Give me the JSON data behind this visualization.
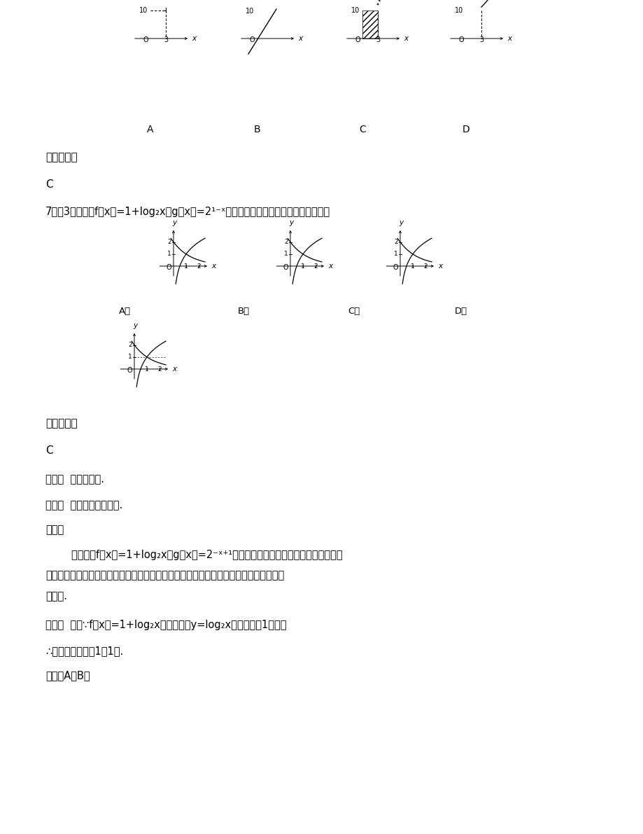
{
  "bg_color": "#ffffff",
  "ref_answer_label": "参考答案：",
  "answer_c": "C",
  "kaodian": "考点：  函数的图象.",
  "zhuanti": "专题：  函数的性质及应用.",
  "fenxi_label": "分析：",
  "fenxi_indent": "        根据函数f（x）=1+log₂x与g（x）=2⁻ˣ⁺¹解析式，分析他们与同底的指数函数、对",
  "fenxi_line2": "数函数的图象之间的关系，（即如何变换得到），分析其经过的特殊点，即可用排除法得",
  "fenxi_line3": "到答案.",
  "jieda_label": "解答：  解：∵f（x）=1+log₂x的图象是由y=log₂x的图象上移1而得，",
  "jieda2": "∴其图象必过点（1，1）.",
  "jieda3": "故排除A、B，"
}
